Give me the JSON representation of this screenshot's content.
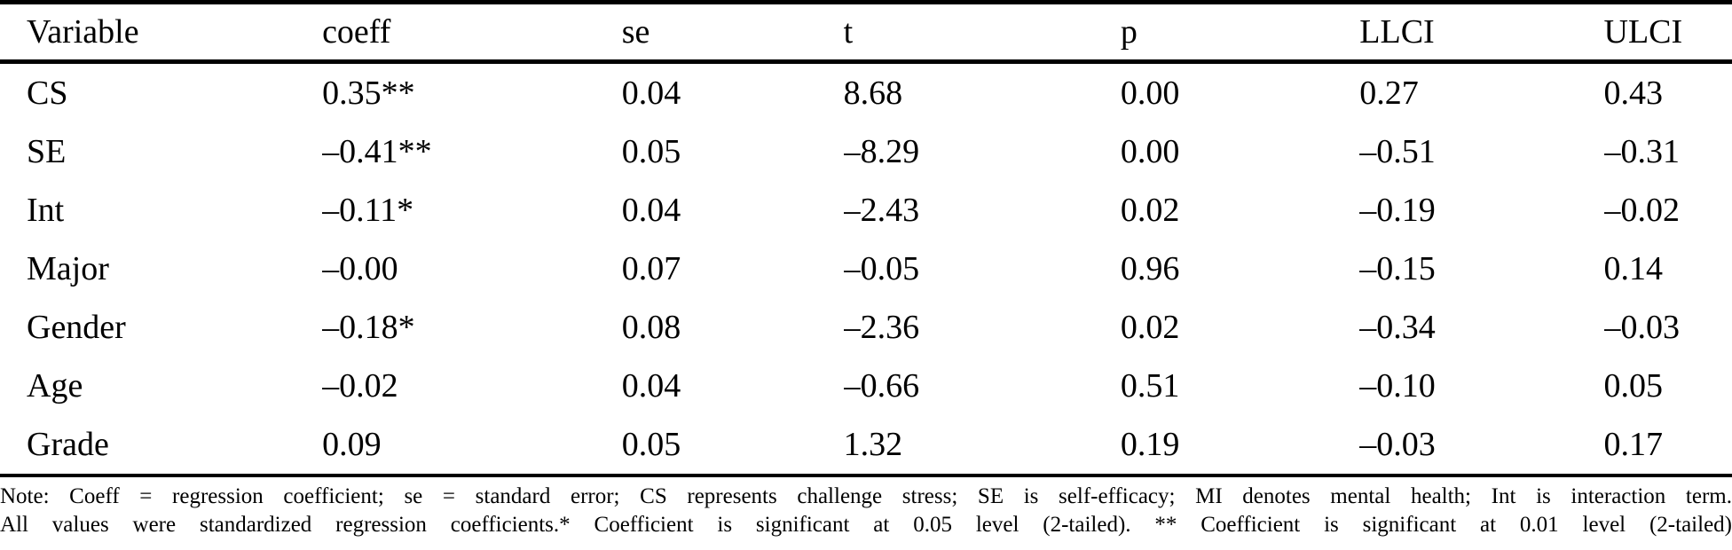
{
  "colors": {
    "text": "#000000",
    "background": "#ffffff",
    "rule": "#000000"
  },
  "table": {
    "columns": [
      "Variable",
      "coeff",
      "se",
      "t",
      "p",
      "LLCI",
      "ULCI"
    ],
    "rows": [
      [
        "CS",
        "0.35**",
        "0.04",
        "8.68",
        "0.00",
        "0.27",
        "0.43"
      ],
      [
        "SE",
        "–0.41**",
        "0.05",
        "–8.29",
        "0.00",
        "–0.51",
        "–0.31"
      ],
      [
        "Int",
        "–0.11*",
        "0.04",
        "–2.43",
        "0.02",
        "–0.19",
        "–0.02"
      ],
      [
        "Major",
        "–0.00",
        "0.07",
        "–0.05",
        "0.96",
        "–0.15",
        "0.14"
      ],
      [
        "Gender",
        "–0.18*",
        "0.08",
        "–2.36",
        "0.02",
        "–0.34",
        "–0.03"
      ],
      [
        "Age",
        "–0.02",
        "0.04",
        "–0.66",
        "0.51",
        "–0.10",
        "0.05"
      ],
      [
        "Grade",
        "0.09",
        "0.05",
        "1.32",
        "0.19",
        "–0.03",
        "0.17"
      ]
    ]
  },
  "note": {
    "line1": "Note: Coeff = regression coefficient; se = standard error; CS represents challenge stress; SE is self-efficacy; MI denotes mental health; Int is interaction term.",
    "line2": "All values were standardized regression coefficients.* Coefficient is significant at 0.05 level (2-tailed). ** Coefficient is significant at 0.01 level (2-tailed)"
  }
}
